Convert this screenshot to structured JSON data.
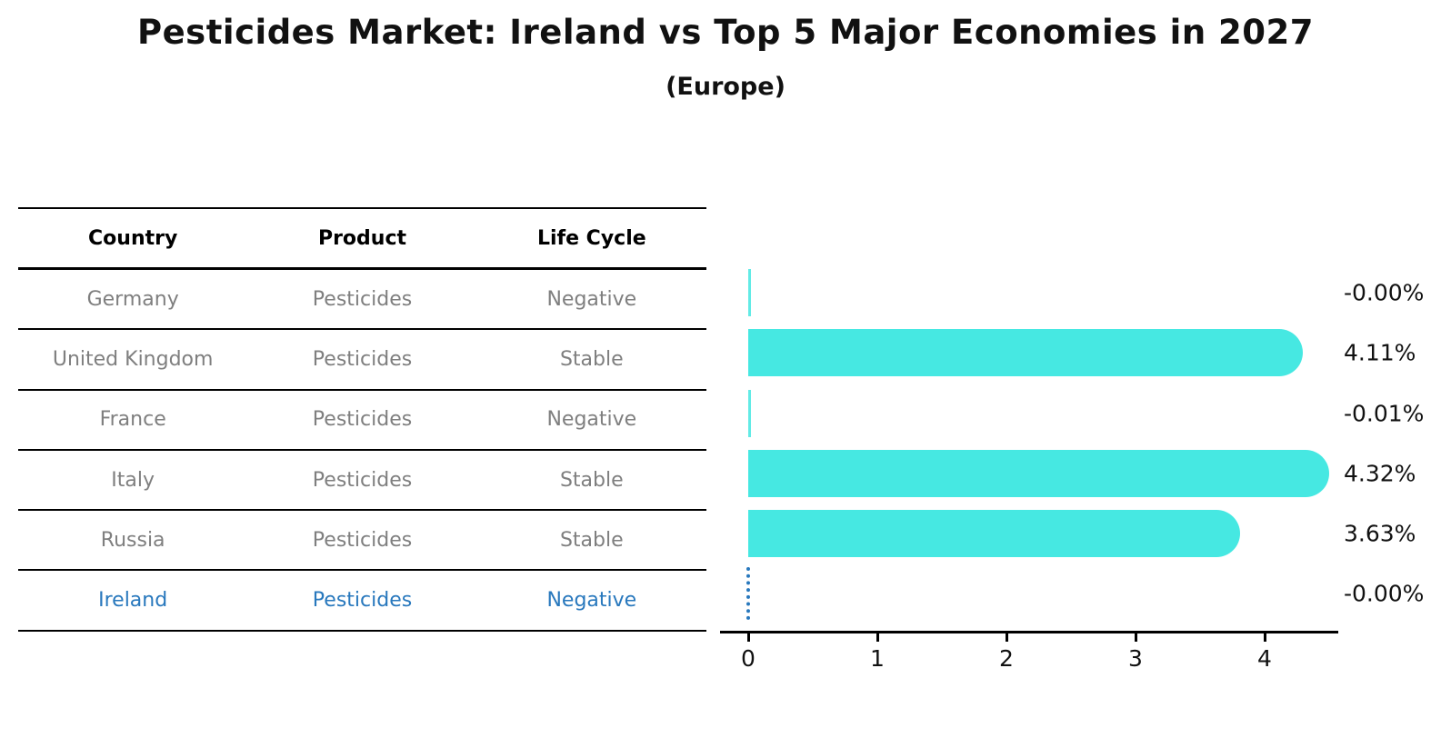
{
  "title": "Pesticides Market: Ireland vs Top 5 Major Economies in 2027",
  "subtitle": "(Europe)",
  "table": {
    "headers": [
      "Country",
      "Product",
      "Life Cycle"
    ],
    "rows": [
      {
        "country": "Germany",
        "product": "Pesticides",
        "life_cycle": "Negative"
      },
      {
        "country": "United Kingdom",
        "product": "Pesticides",
        "life_cycle": "Stable"
      },
      {
        "country": "France",
        "product": "Pesticides",
        "life_cycle": "Negative"
      },
      {
        "country": "Italy",
        "product": "Pesticides",
        "life_cycle": "Stable"
      },
      {
        "country": "Russia",
        "product": "Pesticides",
        "life_cycle": "Stable"
      },
      {
        "country": "Ireland",
        "product": "Pesticides",
        "life_cycle": "Negative"
      }
    ]
  },
  "chart_data": {
    "type": "bar",
    "orientation": "horizontal",
    "title": "Pesticides Market: Ireland vs Top 5 Major Economies in 2027",
    "subtitle": "(Europe)",
    "categories": [
      "Germany",
      "United Kingdom",
      "France",
      "Italy",
      "Russia",
      "Ireland"
    ],
    "values": [
      -0.0,
      4.11,
      -0.01,
      4.32,
      3.63,
      -0.0
    ],
    "value_labels": [
      "-0.00%",
      "4.11%",
      "-0.01%",
      "4.32%",
      "3.63%",
      "-0.00%"
    ],
    "xticks": [
      0,
      1,
      2,
      3,
      4
    ],
    "xlim": [
      0,
      4.4
    ],
    "grid": false,
    "legend": false,
    "highlight_index": 5,
    "bar_color": "#46e8e2",
    "highlight_color": "#2878bd",
    "axis_color": "#000000"
  },
  "colors": {
    "text": "#111111",
    "muted_text": "#7f7f7f",
    "bar": "#46e8e2",
    "highlight": "#2878bd"
  }
}
